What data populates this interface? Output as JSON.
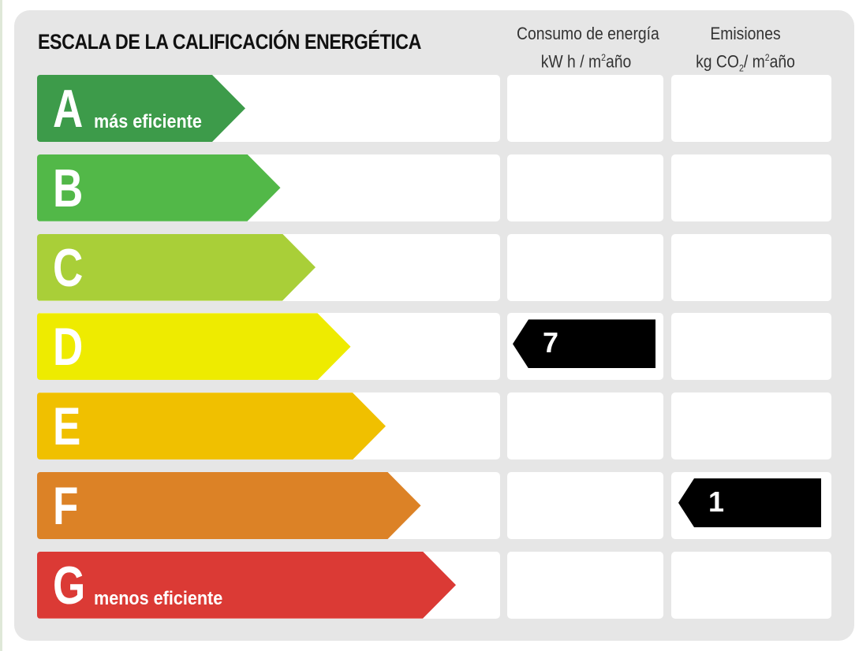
{
  "title": "ESCALA DE LA CALIFICACIÓN ENERGÉTICA",
  "columns": {
    "consumo": {
      "line1": "Consumo de energía",
      "line2_pre": "kW h / m",
      "line2_sup": "2",
      "line2_post": "año"
    },
    "emisiones": {
      "line1": "Emisiones",
      "line2_pre": "kg CO",
      "line2_sub": "2",
      "line2_mid": "/ m",
      "line2_sup": "2",
      "line2_post": "año"
    }
  },
  "ratings": [
    {
      "letter": "A",
      "sublabel": "más eficiente",
      "color": "#3d9b4a"
    },
    {
      "letter": "B",
      "sublabel": "",
      "color": "#52b848"
    },
    {
      "letter": "C",
      "sublabel": "",
      "color": "#a9cf38"
    },
    {
      "letter": "D",
      "sublabel": "",
      "color": "#eeeb00"
    },
    {
      "letter": "E",
      "sublabel": "",
      "color": "#f0c000"
    },
    {
      "letter": "F",
      "sublabel": "",
      "color": "#dc8226"
    },
    {
      "letter": "G",
      "sublabel": "menos eficiente",
      "color": "#db3a35"
    }
  ],
  "consumo_marker": {
    "rating": "D",
    "value": "7"
  },
  "emisiones_marker": {
    "rating": "F",
    "value": "1"
  }
}
